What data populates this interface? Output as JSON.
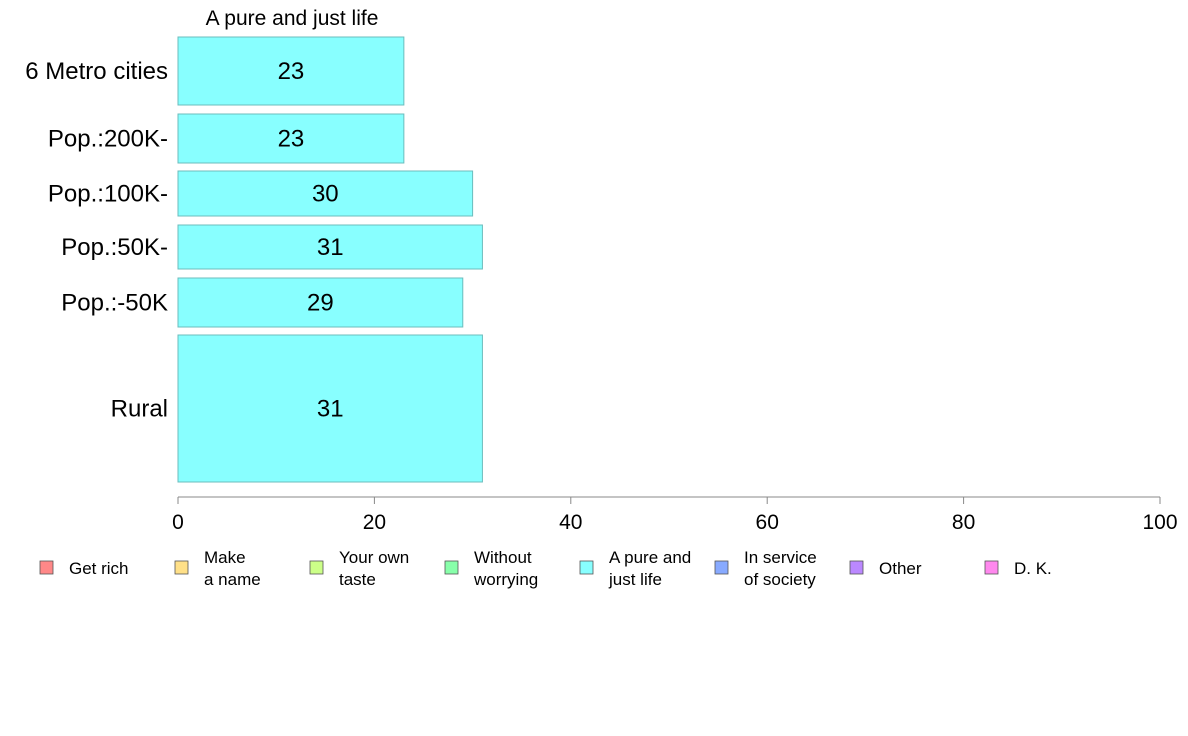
{
  "chart_data": {
    "type": "bar",
    "orientation": "horizontal",
    "title": "A pure and just life",
    "categories": [
      "6 Metro cities",
      "Pop.:200K-",
      "Pop.:100K-",
      "Pop.:50K-",
      "Pop.:-50K",
      "Rural"
    ],
    "values": [
      23,
      23,
      30,
      31,
      29,
      31
    ],
    "bar_color": "#88ffff",
    "xlim": [
      0,
      100
    ],
    "xticks": [
      0,
      20,
      40,
      60,
      80,
      100
    ],
    "grid": false,
    "legend_placement": "bottom",
    "legend": [
      {
        "lines": [
          "Get rich"
        ],
        "color": "#ff8888"
      },
      {
        "lines": [
          "Make",
          "a name"
        ],
        "color": "#ffe088"
      },
      {
        "lines": [
          "Your own",
          "taste"
        ],
        "color": "#ccff88"
      },
      {
        "lines": [
          "Without",
          "worrying"
        ],
        "color": "#88ffaa"
      },
      {
        "lines": [
          "A pure and",
          "just life"
        ],
        "color": "#88ffff"
      },
      {
        "lines": [
          "In service",
          "of society"
        ],
        "color": "#88aaff"
      },
      {
        "lines": [
          "Other"
        ],
        "color": "#bb88ff"
      },
      {
        "lines": [
          "D. K."
        ],
        "color": "#ff88ee"
      }
    ]
  }
}
